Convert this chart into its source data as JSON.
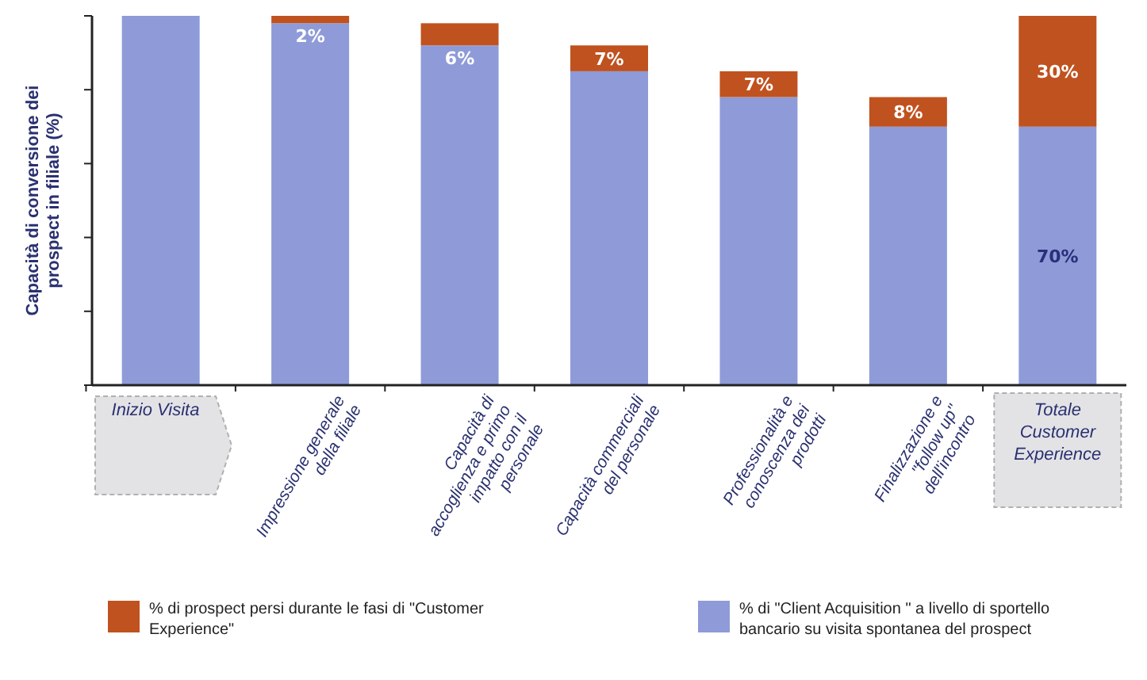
{
  "chart_data": {
    "type": "bar",
    "stacked": true,
    "ylabel": "Capacità di conversione dei prospect in filiale (%)",
    "categories": [
      "Inizio Visita",
      "Impressione generale della filiale",
      "Capacità di accoglienza e primo impatto con il personale",
      "Capacità commerciali del personale",
      "Professionalità e conoscenza dei prodotti",
      "Finalizzazione e \"follow up\" dell'incontro",
      "Totale Customer Experience"
    ],
    "ylim": [
      0,
      100
    ],
    "yticks": [
      {
        "value": 0,
        "label": null
      },
      {
        "value": 20,
        "label": null
      },
      {
        "value": 40,
        "label": null
      },
      {
        "value": 60,
        "label": null
      },
      {
        "value": 80,
        "label": null
      },
      {
        "value": 100,
        "label": null
      }
    ],
    "series": [
      {
        "name": "% di \"Client Acquisition \" a livello di sportello bancario su visita spontanea del prospect",
        "color": "#8e9bd8",
        "values": [
          100,
          98,
          92,
          85,
          78,
          70,
          70
        ],
        "value_labels": [
          null,
          null,
          null,
          null,
          null,
          null,
          "70%"
        ]
      },
      {
        "name": "% di prospect persi durante le fasi di \"Customer Experience\"",
        "color": "#c0521f",
        "values": [
          null,
          2,
          6,
          7,
          7,
          8,
          30
        ],
        "value_labels": [
          null,
          "2%",
          "6%",
          "7%",
          "7%",
          "8%",
          "30%"
        ]
      }
    ],
    "legend": "bottom"
  }
}
